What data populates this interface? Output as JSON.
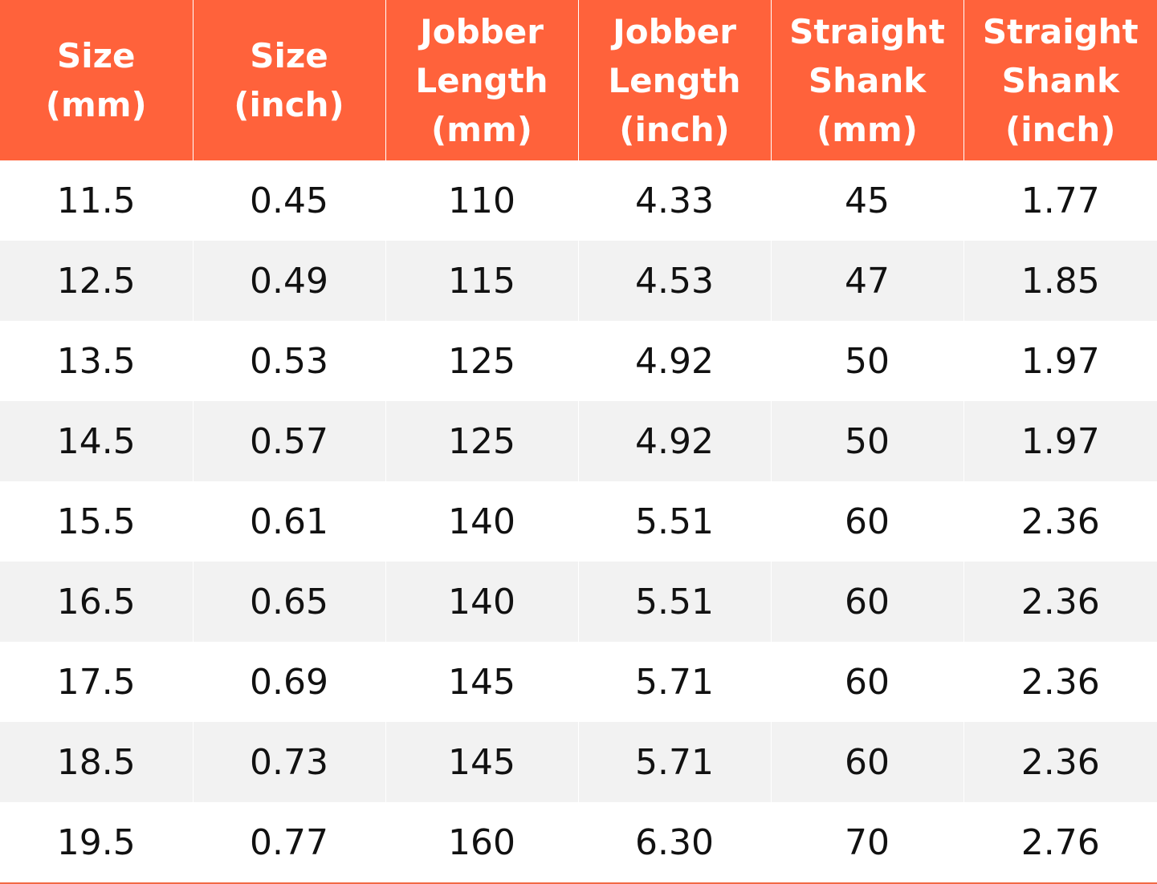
{
  "table": {
    "header": [
      [
        "Size",
        "(mm)"
      ],
      [
        "Size",
        "(inch)"
      ],
      [
        "Jobber",
        "Length",
        "(mm)"
      ],
      [
        "Jobber",
        "Length",
        "(inch)"
      ],
      [
        "Straight",
        "Shank",
        "(mm)"
      ],
      [
        "Straight",
        "Shank",
        "(inch)"
      ]
    ],
    "rows": [
      [
        "11.5",
        "0.45",
        "110",
        "4.33",
        "45",
        "1.77"
      ],
      [
        "12.5",
        "0.49",
        "115",
        "4.53",
        "47",
        "1.85"
      ],
      [
        "13.5",
        "0.53",
        "125",
        "4.92",
        "50",
        "1.97"
      ],
      [
        "14.5",
        "0.57",
        "125",
        "4.92",
        "50",
        "1.97"
      ],
      [
        "15.5",
        "0.61",
        "140",
        "5.51",
        "60",
        "2.36"
      ],
      [
        "16.5",
        "0.65",
        "140",
        "5.51",
        "60",
        "2.36"
      ],
      [
        "17.5",
        "0.69",
        "145",
        "5.71",
        "60",
        "2.36"
      ],
      [
        "18.5",
        "0.73",
        "145",
        "5.71",
        "60",
        "2.36"
      ],
      [
        "19.5",
        "0.77",
        "160",
        "6.30",
        "70",
        "2.76"
      ]
    ]
  }
}
